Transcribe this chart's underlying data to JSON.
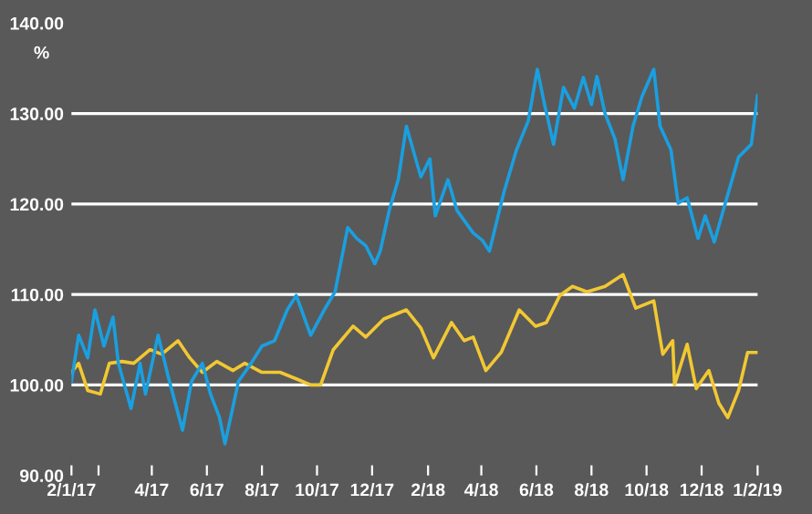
{
  "chart_data": {
    "type": "line",
    "ylabel": "%",
    "ylim": [
      90,
      140
    ],
    "yticks": [
      {
        "value": 90,
        "label": "90.00"
      },
      {
        "value": 100,
        "label": "100.00"
      },
      {
        "value": 110,
        "label": "110.00"
      },
      {
        "value": 120,
        "label": "120.00"
      },
      {
        "value": 130,
        "label": "130.00"
      },
      {
        "value": 140,
        "label": "140.00"
      }
    ],
    "xlim": [
      "2017-01-02",
      "2019-02-01"
    ],
    "xticks": [
      {
        "value": "2017-01-02",
        "label": "2/1/17"
      },
      {
        "value": "2017-02-01",
        "label": null
      },
      {
        "value": "2017-04-01",
        "label": "4/17"
      },
      {
        "value": "2017-06-01",
        "label": "6/17"
      },
      {
        "value": "2017-08-01",
        "label": "8/17"
      },
      {
        "value": "2017-10-01",
        "label": "10/17"
      },
      {
        "value": "2017-12-01",
        "label": "12/17"
      },
      {
        "value": "2018-02-01",
        "label": "2/18"
      },
      {
        "value": "2018-04-01",
        "label": "4/18"
      },
      {
        "value": "2018-06-01",
        "label": "6/18"
      },
      {
        "value": "2018-08-01",
        "label": "8/18"
      },
      {
        "value": "2018-10-01",
        "label": "10/18"
      },
      {
        "value": "2018-12-01",
        "label": "12/18"
      },
      {
        "value": "2019-02-01",
        "label": "1/2/19"
      }
    ],
    "grid": "y",
    "series": [
      {
        "color": "#f2c832",
        "x": [
          "2017-01-02",
          "2017-01-10",
          "2017-01-20",
          "2017-02-03",
          "2017-02-13",
          "2017-02-27",
          "2017-03-12",
          "2017-03-30",
          "2017-04-12",
          "2017-04-30",
          "2017-05-13",
          "2017-05-27",
          "2017-06-12",
          "2017-06-30",
          "2017-07-13",
          "2017-08-01",
          "2017-08-21",
          "2017-09-10",
          "2017-09-24",
          "2017-10-05",
          "2017-10-19",
          "2017-11-10",
          "2017-11-24",
          "2017-12-14",
          "2018-01-08",
          "2018-01-24",
          "2018-02-07",
          "2018-02-27",
          "2018-03-13",
          "2018-03-23",
          "2018-04-06",
          "2018-04-23",
          "2018-05-13",
          "2018-05-31",
          "2018-06-12",
          "2018-06-27",
          "2018-07-11",
          "2018-07-27",
          "2018-08-16",
          "2018-09-05",
          "2018-09-19",
          "2018-10-09",
          "2018-10-19",
          "2018-10-30",
          "2018-11-01",
          "2018-11-15",
          "2018-11-25",
          "2018-12-09",
          "2018-12-20",
          "2018-12-30",
          "2019-01-11",
          "2019-01-21",
          "2019-02-01"
        ],
        "values": [
          101.4,
          102.4,
          99.4,
          99,
          102.4,
          102.6,
          102.4,
          103.9,
          103.4,
          104.9,
          103,
          101.4,
          102.6,
          101.6,
          102.4,
          101.4,
          101.4,
          100.6,
          100,
          100,
          103.9,
          106.5,
          105.3,
          107.3,
          108.3,
          106.3,
          103,
          106.9,
          104.9,
          105.3,
          101.6,
          103.6,
          108.3,
          106.5,
          106.9,
          109.9,
          110.9,
          110.3,
          110.9,
          112.2,
          108.5,
          109.3,
          103.4,
          104.9,
          100,
          104.5,
          99.6,
          101.6,
          98,
          96.4,
          99.4,
          103.6,
          103.6
        ]
      },
      {
        "color": "#1a9fe0",
        "x": [
          "2017-01-02",
          "2017-01-10",
          "2017-01-20",
          "2017-01-28",
          "2017-02-07",
          "2017-02-17",
          "2017-02-23",
          "2017-03-09",
          "2017-03-19",
          "2017-03-25",
          "2017-04-08",
          "2017-04-19",
          "2017-05-05",
          "2017-05-15",
          "2017-05-27",
          "2017-06-05",
          "2017-06-15",
          "2017-06-21",
          "2017-07-06",
          "2017-07-20",
          "2017-08-01",
          "2017-08-15",
          "2017-08-29",
          "2017-09-08",
          "2017-09-24",
          "2017-10-09",
          "2017-10-21",
          "2017-11-04",
          "2017-11-14",
          "2017-11-24",
          "2017-12-04",
          "2017-12-10",
          "2017-12-20",
          "2017-12-30",
          "2018-01-08",
          "2018-01-24",
          "2018-02-03",
          "2018-02-09",
          "2018-02-23",
          "2018-03-05",
          "2018-03-23",
          "2018-04-02",
          "2018-04-10",
          "2018-04-26",
          "2018-05-10",
          "2018-05-23",
          "2018-06-02",
          "2018-06-10",
          "2018-06-20",
          "2018-07-01",
          "2018-07-13",
          "2018-07-23",
          "2018-08-01",
          "2018-08-07",
          "2018-08-16",
          "2018-08-27",
          "2018-09-05",
          "2018-09-16",
          "2018-09-26",
          "2018-10-09",
          "2018-10-16",
          "2018-10-28",
          "2018-11-05",
          "2018-11-15",
          "2018-11-27",
          "2018-12-05",
          "2018-12-15",
          "2018-12-25",
          "2019-01-11",
          "2019-01-25",
          "2019-02-01"
        ],
        "values": [
          100.4,
          105.5,
          103,
          108.3,
          104.3,
          107.5,
          102.4,
          97.4,
          102.4,
          99,
          105.5,
          101,
          95,
          100.4,
          102.4,
          99,
          96.4,
          93.5,
          100.4,
          102.4,
          104.3,
          104.9,
          108.3,
          109.9,
          105.5,
          108.3,
          110.3,
          117.4,
          116.2,
          115.4,
          113.4,
          114.8,
          119.3,
          122.7,
          128.6,
          123,
          125,
          118.7,
          122.7,
          119.3,
          116.8,
          116,
          114.8,
          121.3,
          126,
          129.2,
          134.9,
          131,
          126.6,
          132.9,
          130.6,
          134,
          131,
          134.1,
          130,
          127.2,
          122.7,
          128.6,
          131.9,
          134.9,
          128.6,
          126,
          120.1,
          120.7,
          116.2,
          118.7,
          115.8,
          119.3,
          125.2,
          126.6,
          132
        ]
      }
    ]
  }
}
